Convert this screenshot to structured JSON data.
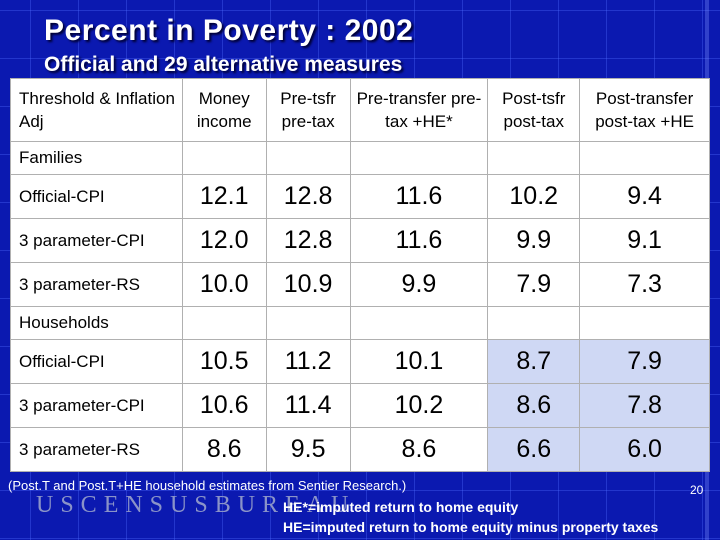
{
  "title": "Percent in Poverty : 2002",
  "subtitle": "Official and 29 alternative measures",
  "table": {
    "row_header": "Threshold & Inflation Adj",
    "columns": [
      "Money income",
      "Pre-tsfr pre-tax",
      "Pre-transfer pre-tax +HE*",
      "Post-tsfr post-tax",
      "Post-transfer post-tax +HE"
    ],
    "sections": [
      {
        "label": "Families",
        "rows": [
          {
            "label": "Official-CPI",
            "values": [
              "12.1",
              "12.8",
              "11.6",
              "10.2",
              "9.4"
            ]
          },
          {
            "label": "3 parameter-CPI",
            "values": [
              "12.0",
              "12.8",
              "11.6",
              "9.9",
              "9.1"
            ]
          },
          {
            "label": "3 parameter-RS",
            "values": [
              "10.0",
              "10.9",
              "9.9",
              "7.9",
              "7.3"
            ]
          }
        ]
      },
      {
        "label": "Households",
        "rows": [
          {
            "label": "Official-CPI",
            "values": [
              "10.5",
              "11.2",
              "10.1",
              "8.7",
              "7.9"
            ]
          },
          {
            "label": "3 parameter-CPI",
            "values": [
              "10.6",
              "11.4",
              "10.2",
              "8.6",
              "7.8"
            ]
          },
          {
            "label": "3 parameter-RS",
            "values": [
              "8.6",
              "9.5",
              "8.6",
              "6.6",
              "6.0"
            ]
          }
        ]
      }
    ]
  },
  "footnote": "(Post.T and Post.T+HE household estimates from Sentier Research.)",
  "page_number": "20",
  "agency": "USCENSUSBUREAU",
  "notes": [
    "HE*=imputed return to home equity",
    "HE=imputed return to home equity minus property taxes"
  ],
  "colors": {
    "background": "#0b19b0",
    "table": "#ffffff",
    "highlight": "#cfd8f4"
  }
}
